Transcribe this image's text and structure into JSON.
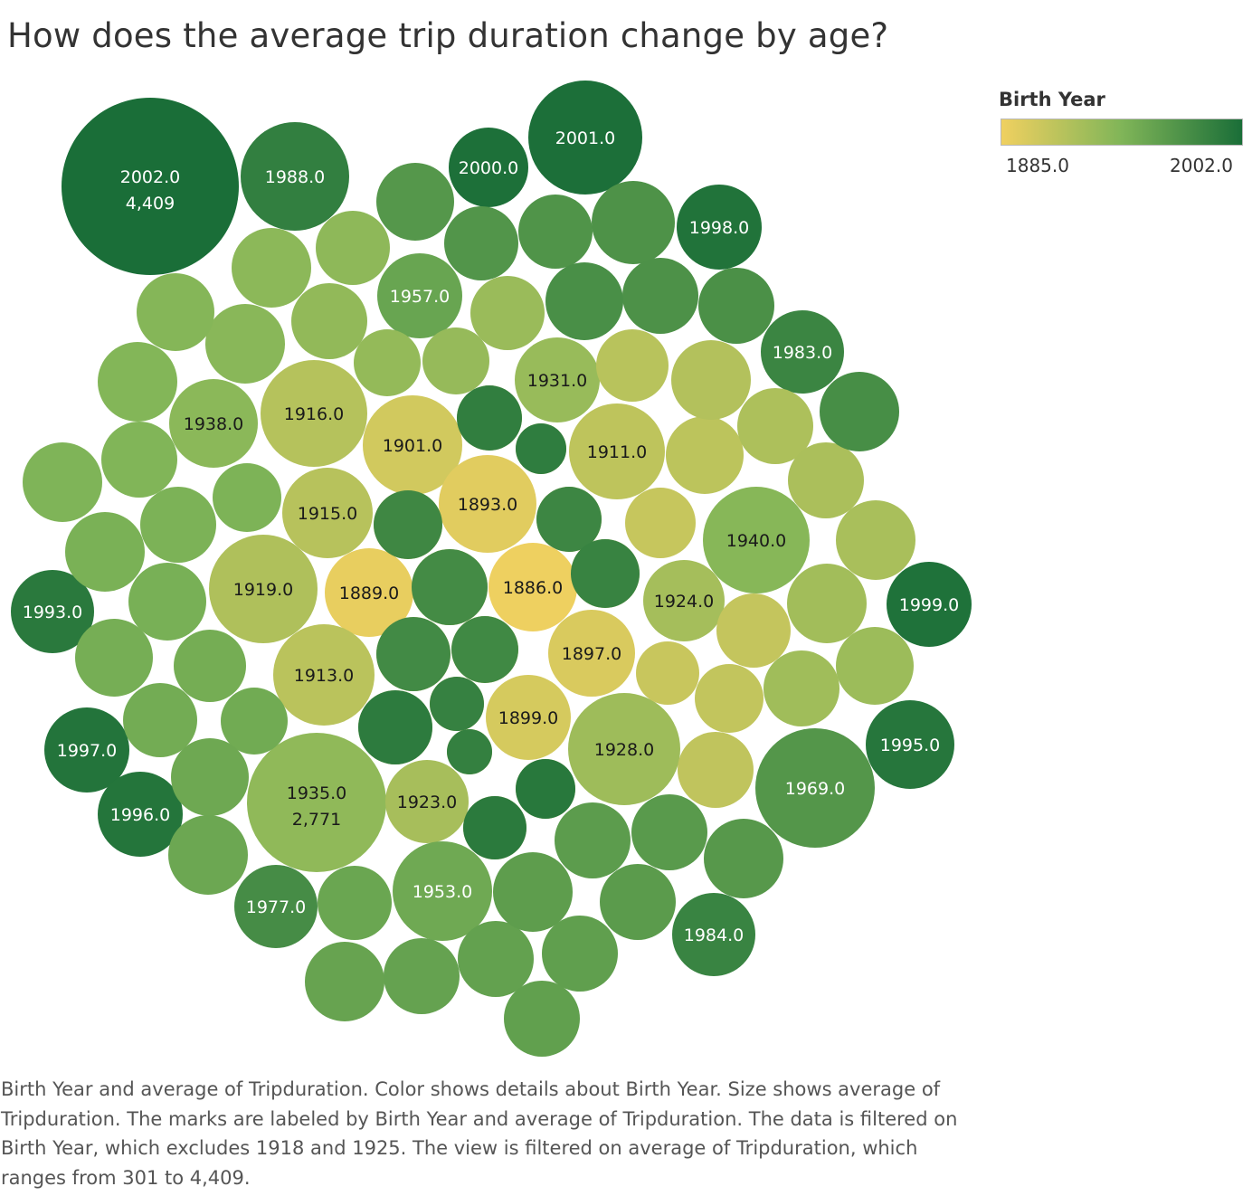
{
  "title": "How does the average trip duration change by age?",
  "legend": {
    "title": "Birth Year",
    "min_label": "1885.0",
    "max_label": "2002.0",
    "min_color": "#f0d060",
    "mid_color": "#80b558",
    "max_color": "#1a6e38"
  },
  "caption": "Birth Year and average of Tripduration.  Color shows details about Birth Year.  Size shows average of Tripduration.  The marks are labeled by Birth Year and average of Tripduration. The data is filtered on Birth Year, which excludes 1918 and 1925. The view is filtered on average of Tripduration, which ranges from 301 to 4,409.",
  "chart_data": {
    "type": "packed-bubble",
    "color_field": "Birth Year",
    "size_field": "average of Tripduration",
    "color_range": [
      1885,
      2002
    ],
    "size_range": [
      301,
      4409
    ],
    "bubbles": [
      {
        "year_label": "2002.0",
        "value_label": "4,409",
        "year": 2002,
        "avg_tripduration": 4409
      },
      {
        "year_label": "1935.0",
        "value_label": "2,771",
        "year": 1935,
        "avg_tripduration": 2771
      },
      {
        "year_label": "1988.0",
        "year": 1988
      },
      {
        "year_label": "2000.0",
        "year": 2000
      },
      {
        "year_label": "2001.0",
        "year": 2001
      },
      {
        "year_label": "1998.0",
        "year": 1998
      },
      {
        "year_label": "1957.0",
        "year": 1957
      },
      {
        "year_label": "1983.0",
        "year": 1983
      },
      {
        "year_label": "1931.0",
        "year": 1931
      },
      {
        "year_label": "1916.0",
        "year": 1916
      },
      {
        "year_label": "1938.0",
        "year": 1938
      },
      {
        "year_label": "1901.0",
        "year": 1901
      },
      {
        "year_label": "1911.0",
        "year": 1911
      },
      {
        "year_label": "1893.0",
        "year": 1893
      },
      {
        "year_label": "1915.0",
        "year": 1915
      },
      {
        "year_label": "1940.0",
        "year": 1940
      },
      {
        "year_label": "1919.0",
        "year": 1919
      },
      {
        "year_label": "1889.0",
        "year": 1889
      },
      {
        "year_label": "1886.0",
        "year": 1886
      },
      {
        "year_label": "1924.0",
        "year": 1924
      },
      {
        "year_label": "1993.0",
        "year": 1993
      },
      {
        "year_label": "1999.0",
        "year": 1999
      },
      {
        "year_label": "1897.0",
        "year": 1897
      },
      {
        "year_label": "1913.0",
        "year": 1913
      },
      {
        "year_label": "1899.0",
        "year": 1899
      },
      {
        "year_label": "1928.0",
        "year": 1928
      },
      {
        "year_label": "1995.0",
        "year": 1995
      },
      {
        "year_label": "1997.0",
        "year": 1997
      },
      {
        "year_label": "1969.0",
        "year": 1969
      },
      {
        "year_label": "1923.0",
        "year": 1923
      },
      {
        "year_label": "1996.0",
        "year": 1996
      },
      {
        "year_label": "1953.0",
        "year": 1953
      },
      {
        "year_label": "1977.0",
        "year": 1977
      },
      {
        "year_label": "1984.0",
        "year": 1984
      },
      {
        "year": 1891
      },
      {
        "year": 1887
      },
      {
        "year": 1888
      },
      {
        "year": 1892
      },
      {
        "year": 1894
      },
      {
        "year": 1895
      },
      {
        "year": 1896
      },
      {
        "year": 1898
      },
      {
        "year": 1900
      },
      {
        "year": 1902
      },
      {
        "year": 1903
      },
      {
        "year": 1904
      },
      {
        "year": 1905
      },
      {
        "year": 1906
      },
      {
        "year": 1907
      },
      {
        "year": 1908
      },
      {
        "year": 1909
      },
      {
        "year": 1910
      },
      {
        "year": 1912
      },
      {
        "year": 1914
      },
      {
        "year": 1917
      },
      {
        "year": 1920
      },
      {
        "year": 1921
      },
      {
        "year": 1922
      },
      {
        "year": 1926
      },
      {
        "year": 1927
      },
      {
        "year": 1929
      },
      {
        "year": 1930
      },
      {
        "year": 1932
      },
      {
        "year": 1933
      },
      {
        "year": 1934
      },
      {
        "year": 1936
      },
      {
        "year": 1937
      },
      {
        "year": 1939
      },
      {
        "year": 1941
      },
      {
        "year": 1942
      },
      {
        "year": 1943
      },
      {
        "year": 1944
      },
      {
        "year": 1945
      },
      {
        "year": 1946
      },
      {
        "year": 1947
      },
      {
        "year": 1948
      },
      {
        "year": 1949
      },
      {
        "year": 1950
      },
      {
        "year": 1951
      },
      {
        "year": 1952
      },
      {
        "year": 1954
      },
      {
        "year": 1955
      },
      {
        "year": 1956
      },
      {
        "year": 1958
      },
      {
        "year": 1959
      },
      {
        "year": 1960
      },
      {
        "year": 1961
      },
      {
        "year": 1962
      },
      {
        "year": 1963
      },
      {
        "year": 1964
      },
      {
        "year": 1965
      },
      {
        "year": 1966
      },
      {
        "year": 1967
      },
      {
        "year": 1968
      },
      {
        "year": 1970
      },
      {
        "year": 1971
      },
      {
        "year": 1972
      },
      {
        "year": 1973
      },
      {
        "year": 1974
      },
      {
        "year": 1975
      },
      {
        "year": 1976
      },
      {
        "year": 1978
      },
      {
        "year": 1979
      },
      {
        "year": 1980
      },
      {
        "year": 1981
      },
      {
        "year": 1982
      },
      {
        "year": 1985
      },
      {
        "year": 1986
      },
      {
        "year": 1987
      },
      {
        "year": 1989
      },
      {
        "year": 1990
      },
      {
        "year": 1991
      },
      {
        "year": 1992
      },
      {
        "year": 1994
      }
    ]
  }
}
